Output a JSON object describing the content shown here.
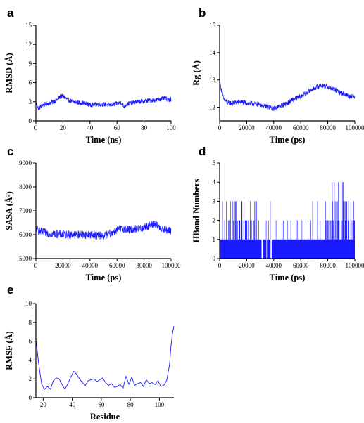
{
  "figure": {
    "series_color": "#1a1aff",
    "axis_color": "#000000"
  },
  "chart_data": [
    {
      "panel": "a",
      "type": "line",
      "xlabel": "Time (ns)",
      "ylabel": "RMSD (Å)",
      "xlim": [
        0,
        100
      ],
      "ylim": [
        0,
        15
      ],
      "xticks": [
        0,
        20,
        40,
        60,
        80,
        100
      ],
      "yticks": [
        0,
        3,
        6,
        9,
        12,
        15
      ],
      "grid": false,
      "series": [
        {
          "noise": 0.35,
          "x": [
            0,
            2,
            5,
            10,
            15,
            18,
            20,
            23,
            27,
            30,
            35,
            40,
            45,
            50,
            55,
            60,
            63,
            65,
            67,
            70,
            75,
            80,
            85,
            90,
            95,
            98,
            100
          ],
          "y": [
            2.8,
            1.9,
            2.5,
            2.8,
            3.2,
            3.8,
            3.9,
            3.4,
            3.0,
            2.9,
            2.8,
            2.5,
            2.6,
            2.6,
            2.5,
            2.7,
            2.9,
            2.2,
            2.6,
            2.8,
            3.0,
            3.1,
            3.2,
            3.3,
            3.6,
            3.3,
            3.4
          ]
        }
      ]
    },
    {
      "panel": "b",
      "type": "line",
      "xlabel": "Time (ps)",
      "ylabel": "Rg (Å)",
      "xlim": [
        0,
        100000
      ],
      "ylim": [
        11.5,
        15
      ],
      "xticks": [
        0,
        20000,
        40000,
        60000,
        80000,
        100000
      ],
      "yticks": [
        12,
        13,
        14,
        15
      ],
      "grid": false,
      "series": [
        {
          "noise": 0.09,
          "x": [
            0,
            1000,
            3000,
            6000,
            10000,
            15000,
            20000,
            30000,
            40000,
            45000,
            50000,
            55000,
            60000,
            65000,
            70000,
            75000,
            80000,
            85000,
            88000,
            92000,
            96000,
            100000
          ],
          "y": [
            12.9,
            12.7,
            12.3,
            12.15,
            12.15,
            12.2,
            12.15,
            12.1,
            11.95,
            12.05,
            12.15,
            12.3,
            12.4,
            12.55,
            12.7,
            12.8,
            12.75,
            12.65,
            12.55,
            12.5,
            12.4,
            12.4
          ]
        }
      ]
    },
    {
      "panel": "c",
      "type": "line",
      "xlabel": "Time (ps)",
      "ylabel": "SASA (Å²)",
      "xlim": [
        0,
        100000
      ],
      "ylim": [
        5000,
        9000
      ],
      "xticks": [
        0,
        20000,
        40000,
        60000,
        80000,
        100000
      ],
      "yticks": [
        5000,
        6000,
        7000,
        8000,
        9000
      ],
      "grid": false,
      "series": [
        {
          "noise": 170,
          "x": [
            0,
            2000,
            5000,
            10000,
            20000,
            30000,
            40000,
            50000,
            55000,
            60000,
            65000,
            70000,
            75000,
            80000,
            85000,
            88000,
            90000,
            95000,
            100000
          ],
          "y": [
            6300,
            6150,
            6100,
            6050,
            6000,
            6000,
            6000,
            5950,
            6050,
            6200,
            6250,
            6200,
            6250,
            6300,
            6400,
            6450,
            6350,
            6200,
            6150
          ]
        }
      ]
    },
    {
      "panel": "d",
      "type": "bar",
      "xlabel": "Time (ps)",
      "ylabel": "HBond Numbers",
      "xlim": [
        0,
        100000
      ],
      "ylim": [
        0,
        5
      ],
      "xticks": [
        0,
        20000,
        40000,
        60000,
        80000,
        100000
      ],
      "yticks": [
        0,
        1,
        2,
        3,
        4,
        5
      ],
      "grid": false,
      "baseline_segments": [
        [
          0,
          31000
        ],
        [
          32000,
          34500
        ],
        [
          35000,
          37500
        ],
        [
          38500,
          100000
        ]
      ],
      "spike_counts": [
        {
          "x_range": [
            0,
            30000
          ],
          "value": 2,
          "count": 30
        },
        {
          "x_range": [
            0,
            30000
          ],
          "value": 3,
          "count": 14
        },
        {
          "x_range": [
            30000,
            78000
          ],
          "value": 2,
          "count": 16
        },
        {
          "x_range": [
            30000,
            78000
          ],
          "value": 3,
          "count": 4
        },
        {
          "x_range": [
            78000,
            100000
          ],
          "value": 2,
          "count": 38
        },
        {
          "x_range": [
            78000,
            100000
          ],
          "value": 3,
          "count": 18
        },
        {
          "x_range": [
            82000,
            92000
          ],
          "value": 4,
          "count": 6
        }
      ]
    },
    {
      "panel": "e",
      "type": "line",
      "xlabel": "Residue",
      "ylabel": "RMSF (Å)",
      "xlim": [
        15,
        110
      ],
      "ylim": [
        0,
        10
      ],
      "xticks": [
        20,
        40,
        60,
        80,
        100
      ],
      "yticks": [
        0,
        2,
        4,
        6,
        8,
        10
      ],
      "grid": false,
      "series": [
        {
          "noise": 0,
          "x": [
            15,
            17,
            19,
            21,
            23,
            25,
            27,
            29,
            31,
            33,
            35,
            37,
            39,
            41,
            43,
            45,
            47,
            49,
            51,
            53,
            55,
            57,
            59,
            61,
            63,
            65,
            67,
            69,
            71,
            73,
            75,
            77,
            79,
            81,
            83,
            85,
            87,
            89,
            91,
            93,
            95,
            97,
            99,
            101,
            103,
            105,
            107,
            108,
            109,
            110
          ],
          "y": [
            6.2,
            3.5,
            1.4,
            0.9,
            1.2,
            0.9,
            1.8,
            2.1,
            2.0,
            1.4,
            0.9,
            1.5,
            2.2,
            2.8,
            2.5,
            2.0,
            1.6,
            1.3,
            1.8,
            1.9,
            2.0,
            1.7,
            1.9,
            2.1,
            1.6,
            1.3,
            1.5,
            1.1,
            1.2,
            1.4,
            1.0,
            2.3,
            1.4,
            2.2,
            1.3,
            1.5,
            1.6,
            1.2,
            1.9,
            1.5,
            1.6,
            1.4,
            1.8,
            1.2,
            1.3,
            1.8,
            3.5,
            5.5,
            6.8,
            7.6
          ]
        }
      ]
    }
  ]
}
